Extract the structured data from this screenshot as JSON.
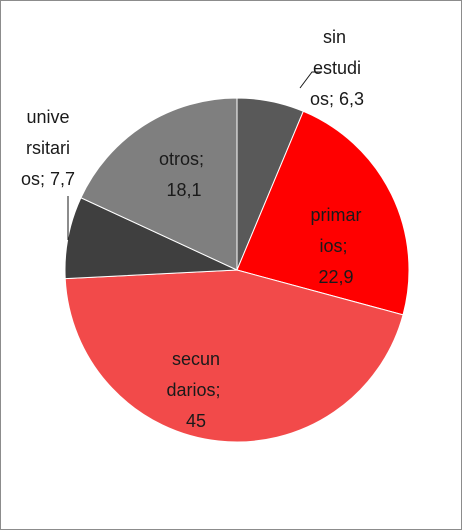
{
  "chart_data": {
    "type": "pie",
    "categories": [
      "sin estudios",
      "primarios",
      "secundarios",
      "universitarios",
      "otros"
    ],
    "values": [
      6.3,
      22.9,
      45,
      7.7,
      18.1
    ],
    "value_labels": [
      "sin estudios; 6,3",
      "primarios; 22,9",
      "secundarios; 45",
      "universitarios; 7,7",
      "otros; 18,1"
    ],
    "colors": [
      "#595959",
      "#ff0000",
      "#f24a4a",
      "#3f3f3f",
      "#7f7f7f"
    ]
  }
}
